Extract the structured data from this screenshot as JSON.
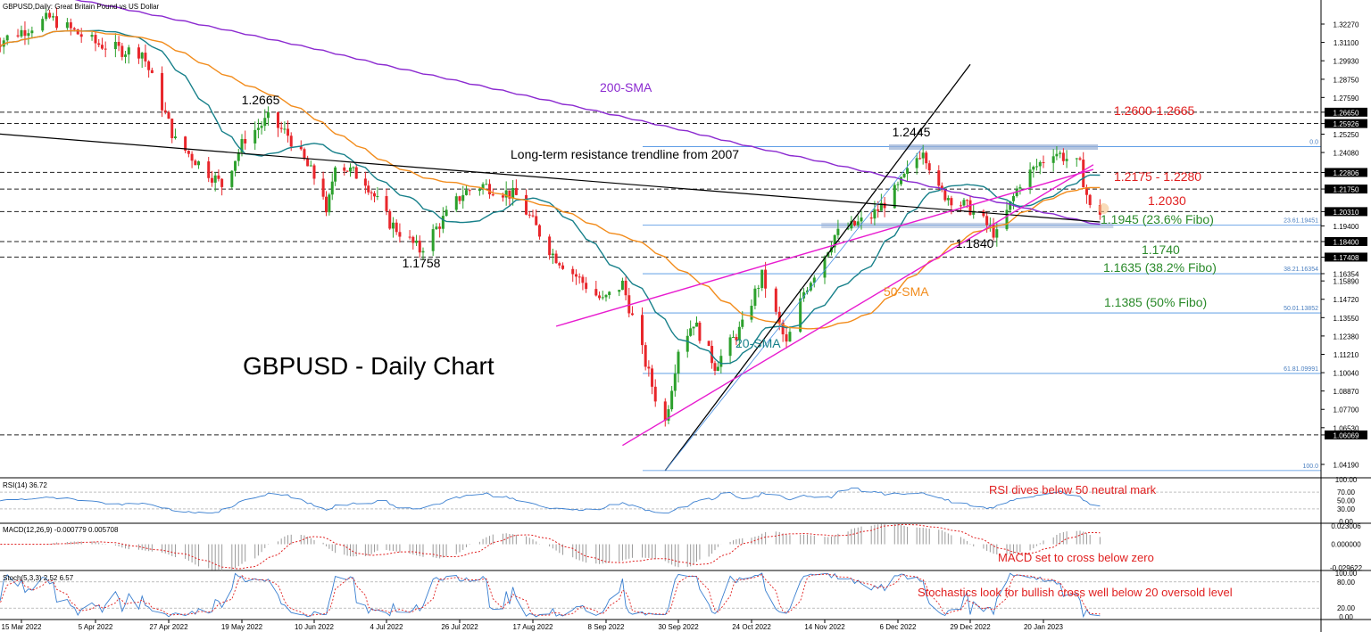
{
  "header": {
    "symbol": "GBPUSD,Daily:",
    "description": "Great Britain Pound vs US Dollar"
  },
  "chart_title": "GBPUSD - Daily Chart",
  "colors": {
    "bull": "#2ca02c",
    "bear": "#e8262b",
    "sma20": "#17808a",
    "sma50": "#f28c1c",
    "sma200": "#8b2ad0",
    "channel": "#e81ccf",
    "trend": "#000000",
    "fibo": "#4a90e2",
    "green_text": "#2a8a2a",
    "red_text": "#e02020"
  },
  "chart_data": [
    {
      "type": "candlestick",
      "title": "GBPUSD - Daily Chart",
      "x_tick_labels": [
        "15 Mar 2022",
        "5 Apr 2022",
        "27 Apr 2022",
        "19 May 2022",
        "10 Jun 2022",
        "4 Jul 2022",
        "26 Jul 2022",
        "17 Aug 2022",
        "8 Sep 2022",
        "30 Sep 2022",
        "24 Oct 2022",
        "14 Nov 2022",
        "6 Dec 2022",
        "29 Dec 2022",
        "20 Jan 2023"
      ],
      "y_range": [
        1.0345,
        1.3335
      ],
      "y_tick_labels": [
        "1.32270",
        "1.31100",
        "1.29930",
        "1.28750",
        "1.27590",
        "1.26650",
        "1.25926",
        "1.25250",
        "1.24080",
        "1.22806",
        "1.21750",
        "1.20310",
        "1.19400",
        "1.18400",
        "1.17408",
        "1.16354",
        "1.15890",
        "1.14720",
        "1.13550",
        "1.12380",
        "1.11210",
        "1.10040",
        "1.08870",
        "1.07700",
        "1.06530",
        "1.06069",
        "1.04190"
      ],
      "highlighted_y_labels": [
        "1.26650",
        "1.25926",
        "1.22806",
        "1.21750",
        "1.20310",
        "1.18400",
        "1.17408",
        "1.06069"
      ],
      "ohlc_anchor_closes": [
        {
          "date": "2022-03-07",
          "close": 1.31
        },
        {
          "date": "2022-03-23",
          "close": 1.3265
        },
        {
          "date": "2022-04-05",
          "close": 1.3105
        },
        {
          "date": "2022-04-13",
          "close": 1.306
        },
        {
          "date": "2022-04-19",
          "close": 1.305
        },
        {
          "date": "2022-04-29",
          "close": 1.248
        },
        {
          "date": "2022-05-13",
          "close": 1.22
        },
        {
          "date": "2022-05-20",
          "close": 1.25
        },
        {
          "date": "2022-05-27",
          "close": 1.262
        },
        {
          "date": "2022-06-02",
          "close": 1.252
        },
        {
          "date": "2022-06-13",
          "close": 1.215
        },
        {
          "date": "2022-06-14",
          "close": 1.199
        },
        {
          "date": "2022-06-17",
          "close": 1.235
        },
        {
          "date": "2022-06-27",
          "close": 1.223
        },
        {
          "date": "2022-07-05",
          "close": 1.196
        },
        {
          "date": "2022-07-14",
          "close": 1.1785
        },
        {
          "date": "2022-07-27",
          "close": 1.215
        },
        {
          "date": "2022-08-02",
          "close": 1.22
        },
        {
          "date": "2022-08-12",
          "close": 1.213
        },
        {
          "date": "2022-08-23",
          "close": 1.176
        },
        {
          "date": "2022-09-07",
          "close": 1.146
        },
        {
          "date": "2022-09-13",
          "close": 1.157
        },
        {
          "date": "2022-09-23",
          "close": 1.085
        },
        {
          "date": "2022-09-26",
          "close": 1.069
        },
        {
          "date": "2022-09-30",
          "close": 1.116
        },
        {
          "date": "2022-10-05",
          "close": 1.133
        },
        {
          "date": "2022-10-12",
          "close": 1.105
        },
        {
          "date": "2022-10-21",
          "close": 1.13
        },
        {
          "date": "2022-10-27",
          "close": 1.162
        },
        {
          "date": "2022-11-03",
          "close": 1.118
        },
        {
          "date": "2022-11-08",
          "close": 1.152
        },
        {
          "date": "2022-11-17",
          "close": 1.188
        },
        {
          "date": "2022-11-28",
          "close": 1.2
        },
        {
          "date": "2022-12-06",
          "close": 1.218
        },
        {
          "date": "2022-12-14",
          "close": 1.244
        },
        {
          "date": "2022-12-19",
          "close": 1.216
        },
        {
          "date": "2022-12-29",
          "close": 1.205
        },
        {
          "date": "2023-01-06",
          "close": 1.188
        },
        {
          "date": "2023-01-13",
          "close": 1.222
        },
        {
          "date": "2023-01-23",
          "close": 1.242
        },
        {
          "date": "2023-01-31",
          "close": 1.232
        },
        {
          "date": "2023-02-03",
          "close": 1.205
        },
        {
          "date": "2023-02-06",
          "close": 1.203
        }
      ],
      "series": [
        {
          "name": "20-SMA"
        },
        {
          "name": "50-SMA"
        },
        {
          "name": "200-SMA"
        }
      ],
      "lines": [
        {
          "label": "Long-term resistance trendline from 2007",
          "from": {
            "date": "2022-03-01",
            "price": 1.254
          },
          "to": {
            "date": "2023-02-06",
            "price": 1.1965
          }
        },
        {
          "label": "",
          "from": {
            "date": "2022-09-26",
            "price": 1.038
          },
          "to": {
            "date": "2022-12-29",
            "price": 1.297
          },
          "note": "support trendline"
        },
        {
          "label": "",
          "from": {
            "date": "2022-08-24",
            "price": 1.13
          },
          "to": {
            "date": "2023-02-04",
            "price": 1.23
          },
          "note": "upper channel"
        },
        {
          "label": "",
          "from": {
            "date": "2022-09-13",
            "price": 1.054
          },
          "to": {
            "date": "2023-02-04",
            "price": 1.233
          },
          "note": "lower channel"
        },
        {
          "label": "",
          "from": {
            "date": "2022-09-26",
            "price": 1.038
          },
          "to": {
            "date": "2022-12-14",
            "price": 1.2445
          },
          "note": "fibo base"
        }
      ],
      "fibonacci": [
        {
          "level": "0.0",
          "price": 1.2445
        },
        {
          "level": "23.61.19451",
          "price": 1.1945
        },
        {
          "level": "38.21.16354",
          "price": 1.1635
        },
        {
          "level": "50.01.13852",
          "price": 1.1385
        },
        {
          "level": "61.81.09991",
          "price": 1.0999
        },
        {
          "level": "100.0",
          "price": 1.038
        }
      ],
      "horizontal_levels": [
        1.2665,
        1.2593,
        1.2281,
        1.2175,
        1.2031,
        1.184,
        1.1741,
        1.0607
      ],
      "annotations": [
        {
          "text": "1.2665",
          "date": "2022-05-27",
          "price": 1.2665
        },
        {
          "text": "1.1758",
          "date": "2022-07-14",
          "price": 1.1758
        },
        {
          "text": "1.2445",
          "date": "2022-12-14",
          "price": 1.2445
        },
        {
          "text": "1.1840",
          "date": "2023-01-06",
          "price": 1.184
        },
        {
          "text": "200-SMA"
        },
        {
          "text": "50-SMA"
        },
        {
          "text": "20-SMA"
        },
        {
          "text": "Long-term resistance trendline from 2007"
        },
        {
          "text": "1.2600-1.2665",
          "color": "red"
        },
        {
          "text": "1.2175 - 1.2280",
          "color": "red"
        },
        {
          "text": "1.2030",
          "color": "red"
        },
        {
          "text": "1.1945 (23.6% Fibo)",
          "color": "green"
        },
        {
          "text": "1.1740",
          "color": "green"
        },
        {
          "text": "1.1635 (38.2% Fibo)",
          "color": "green"
        },
        {
          "text": "1.1385 (50% Fibo)",
          "color": "green"
        }
      ]
    },
    {
      "type": "line",
      "title": "RSI(14) 36.72",
      "series": [
        {
          "name": "RSI(14)",
          "last": 36.72
        }
      ],
      "y_tick_labels": [
        "100.00",
        "70.00",
        "50.00",
        "30.00",
        "0.00"
      ],
      "annotation": "RSI dives below 50 neutral mark"
    },
    {
      "type": "bar",
      "title": "MACD(12,26,9) -0.000779 0.005708",
      "series": [
        {
          "name": "MACD",
          "last": -0.000779
        },
        {
          "name": "Signal",
          "last": 0.005708
        }
      ],
      "y_tick_labels": [
        "0.023006",
        "0.000000",
        "-0.029622"
      ],
      "annotation": "MACD set to cross below zero"
    },
    {
      "type": "line",
      "title": "Stoch(5,3,3) 2.52 6.57",
      "series": [
        {
          "name": "%K",
          "last": 2.52
        },
        {
          "name": "%D",
          "last": 6.57
        }
      ],
      "y_tick_labels": [
        "100.00",
        "80.00",
        "20.00",
        "0.00"
      ],
      "annotation": "Stochastics look for bullish cross well below 20 oversold level"
    }
  ],
  "panels": {
    "rsi_header": "RSI(14) 36.72",
    "macd_header": "MACD(12,26,9) -0.000779 0.005708",
    "stoch_header": "Stoch(5,3,3) 2.52 6.57"
  }
}
